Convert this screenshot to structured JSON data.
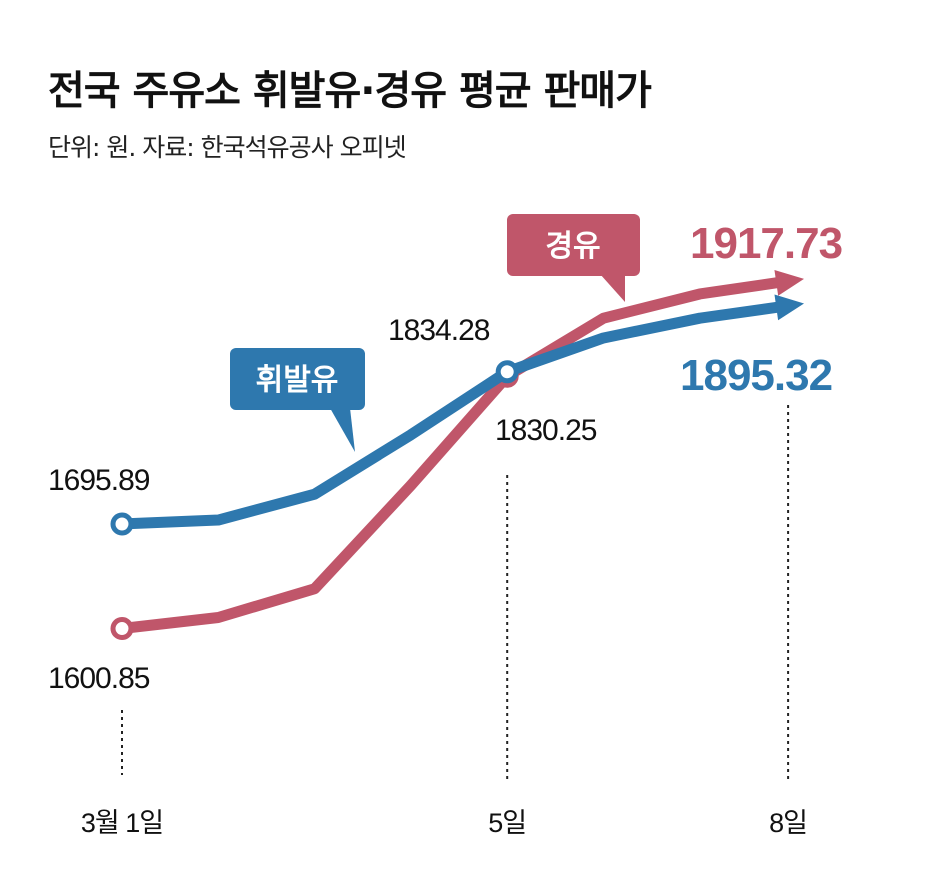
{
  "title": "전국 주유소 휘발유·경유 평균 판매가",
  "subtitle": "단위: 원. 자료: 한국석유공사 오피넷",
  "chart_data": {
    "type": "line",
    "x": [
      1,
      2,
      3,
      4,
      5,
      6,
      7,
      8
    ],
    "x_tick_labels": [
      {
        "x": 1,
        "label": "3월 1일"
      },
      {
        "x": 5,
        "label": "5일"
      },
      {
        "x": 8,
        "label": "8일"
      }
    ],
    "series": [
      {
        "name": "휘발유",
        "color": "#2e78ae",
        "values": [
          1695.89,
          1699.5,
          1723,
          1777,
          1834.28,
          1865,
          1883,
          1895.32
        ]
      },
      {
        "name": "경유",
        "color": "#c0566a",
        "values": [
          1600.85,
          1610.9,
          1637,
          1731,
          1830.25,
          1883,
          1905,
          1917.73
        ]
      }
    ],
    "data_labels": [
      {
        "series": "휘발유",
        "x": 1,
        "text": "1695.89"
      },
      {
        "series": "휘발유",
        "x": 5,
        "text": "1834.28"
      },
      {
        "series": "휘발유",
        "x": 8,
        "text": "1895.32"
      },
      {
        "series": "경유",
        "x": 1,
        "text": "1600.85"
      },
      {
        "series": "경유",
        "x": 5,
        "text": "1830.25"
      },
      {
        "series": "경유",
        "x": 8,
        "text": "1917.73"
      }
    ],
    "grid": false
  }
}
